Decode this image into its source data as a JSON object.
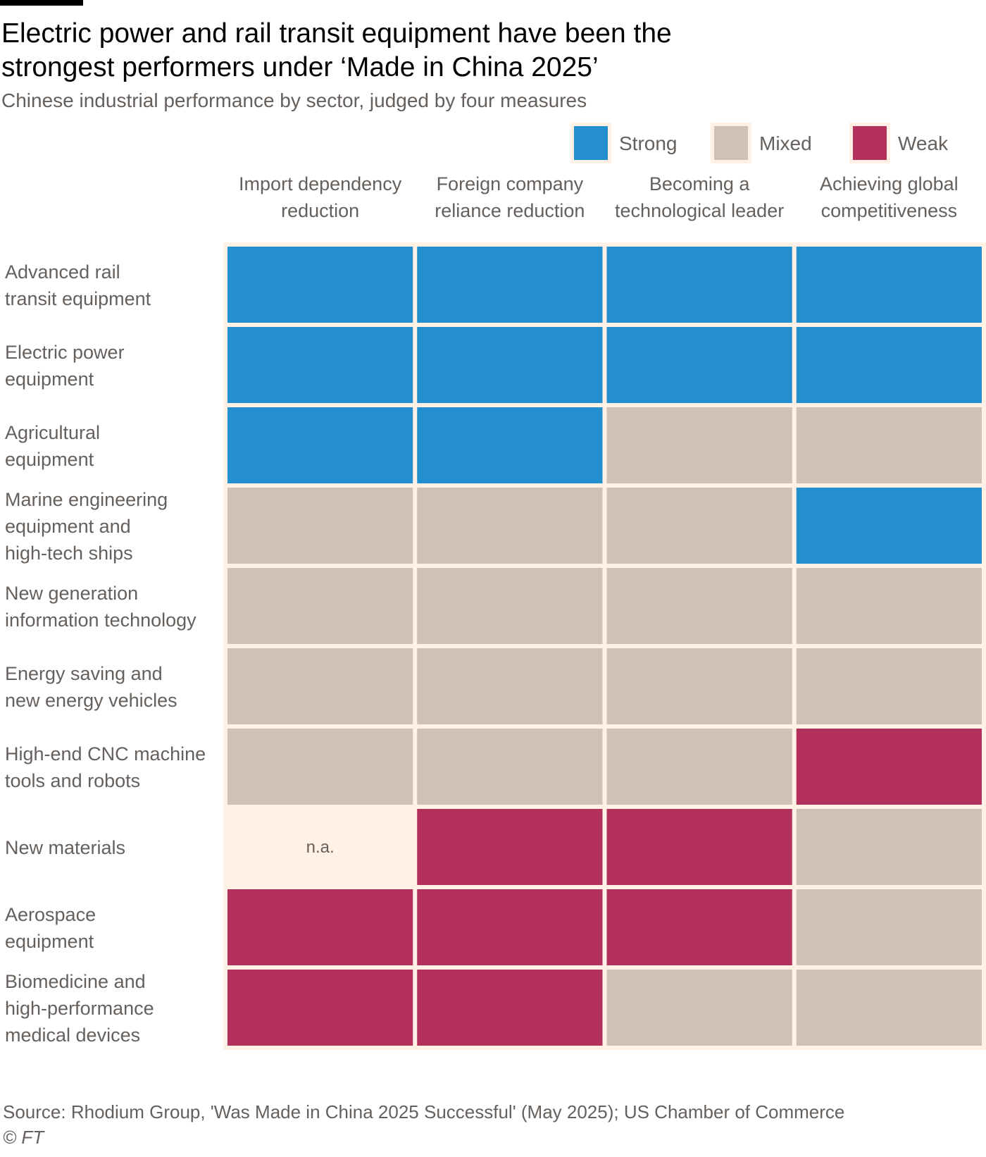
{
  "title": "Electric power and rail transit equipment have been the strongest performers under ‘Made in China 2025’",
  "subtitle": "Chinese industrial performance by sector, judged by four measures",
  "source": "Source: Rhodium Group, 'Was Made in China 2025 Successful' (May 2025); US Chamber of Commerce",
  "copyright": "© FT",
  "colors": {
    "strong": "#238fce",
    "mixed": "#cec2b8",
    "weak": "#b3305c",
    "na": "#fff1e5",
    "background": "#fff1e5",
    "text": "#66605c"
  },
  "chart_data": {
    "type": "heatmap",
    "title": "Electric power and rail transit equipment have been the strongest performers under ‘Made in China 2025’",
    "subtitle": "Chinese industrial performance by sector, judged by four measures",
    "legend": [
      {
        "key": "strong",
        "label": "Strong"
      },
      {
        "key": "mixed",
        "label": "Mixed"
      },
      {
        "key": "weak",
        "label": "Weak"
      }
    ],
    "legend_position": "top-right",
    "columns": [
      [
        "Import dependency",
        "reduction"
      ],
      [
        "Foreign company",
        "reliance reduction"
      ],
      [
        "Becoming a",
        "technological leader"
      ],
      [
        "Achieving global",
        "competitiveness"
      ]
    ],
    "rows": [
      {
        "label": [
          "Advanced rail",
          "transit equipment"
        ],
        "values": [
          "strong",
          "strong",
          "strong",
          "strong"
        ]
      },
      {
        "label": [
          "Electric power",
          "equipment"
        ],
        "values": [
          "strong",
          "strong",
          "strong",
          "strong"
        ]
      },
      {
        "label": [
          "Agricultural",
          "equipment"
        ],
        "values": [
          "strong",
          "strong",
          "mixed",
          "mixed"
        ]
      },
      {
        "label": [
          "Marine engineering",
          "equipment and",
          "high-tech ships"
        ],
        "values": [
          "mixed",
          "mixed",
          "mixed",
          "strong"
        ]
      },
      {
        "label": [
          "New generation",
          "information technology"
        ],
        "values": [
          "mixed",
          "mixed",
          "mixed",
          "mixed"
        ]
      },
      {
        "label": [
          "Energy saving and",
          "new energy vehicles"
        ],
        "values": [
          "mixed",
          "mixed",
          "mixed",
          "mixed"
        ]
      },
      {
        "label": [
          "High-end CNC machine",
          "tools and robots"
        ],
        "values": [
          "mixed",
          "mixed",
          "mixed",
          "weak"
        ]
      },
      {
        "label": [
          "New materials"
        ],
        "values": [
          "na",
          "weak",
          "weak",
          "mixed"
        ]
      },
      {
        "label": [
          "Aerospace",
          "equipment"
        ],
        "values": [
          "weak",
          "weak",
          "weak",
          "mixed"
        ]
      },
      {
        "label": [
          "Biomedicine and",
          "high-performance",
          "medical devices"
        ],
        "values": [
          "weak",
          "weak",
          "mixed",
          "mixed"
        ]
      }
    ],
    "na_label": "n.a."
  }
}
